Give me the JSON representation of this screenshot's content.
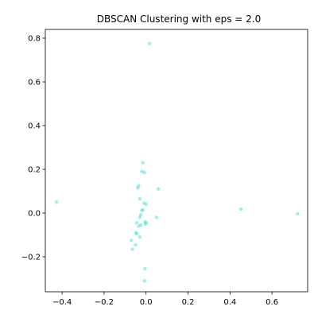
{
  "chart_data": {
    "type": "scatter",
    "title": "DBSCAN Clustering with eps = 2.0",
    "xlabel": "",
    "ylabel": "",
    "xlim": [
      -0.48,
      0.77
    ],
    "ylim": [
      -0.36,
      0.84
    ],
    "x_ticks": [
      -0.4,
      -0.2,
      0.0,
      0.2,
      0.4,
      0.6
    ],
    "x_tick_labels": [
      "−0.4",
      "−0.2",
      "0.0",
      "0.2",
      "0.4",
      "0.6"
    ],
    "y_ticks": [
      -0.2,
      0.0,
      0.2,
      0.4,
      0.6,
      0.8
    ],
    "y_tick_labels": [
      "−0.2",
      "0.0",
      "0.2",
      "0.4",
      "0.6",
      "0.8"
    ],
    "grid": false,
    "legend": "none",
    "marker_color": "#40e0d0",
    "marker_opacity": 0.5,
    "series": [
      {
        "x": [
          0.017,
          -0.427,
          0.452,
          0.722,
          -0.015,
          -0.02,
          -0.008,
          0.058,
          -0.035,
          -0.04,
          -0.03,
          -0.01,
          -0.015,
          -0.02,
          0.0,
          -0.025,
          0.05,
          -0.03,
          0.0,
          -0.003,
          -0.005,
          -0.045,
          -0.025,
          -0.035,
          -0.048,
          -0.045,
          -0.03,
          -0.07,
          -0.05,
          -0.065,
          -0.005,
          -0.008
        ],
        "y": [
          0.775,
          0.05,
          0.018,
          -0.003,
          0.23,
          0.19,
          0.185,
          0.11,
          0.125,
          0.115,
          0.065,
          0.045,
          0.015,
          0.012,
          0.04,
          -0.008,
          -0.02,
          -0.02,
          -0.045,
          -0.05,
          -0.04,
          -0.045,
          -0.055,
          -0.06,
          -0.09,
          -0.095,
          -0.11,
          -0.125,
          -0.145,
          -0.165,
          -0.255,
          -0.31
        ]
      }
    ]
  }
}
